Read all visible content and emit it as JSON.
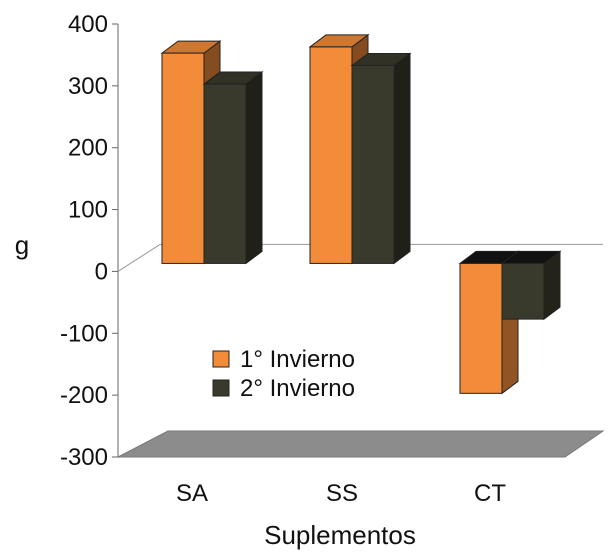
{
  "chart_data": {
    "type": "bar",
    "style": "3d-clustered",
    "categories": [
      "SA",
      "SS",
      "CT"
    ],
    "series": [
      {
        "name": "1° Invierno",
        "values": [
          340,
          350,
          -210
        ],
        "color": "#F28C38"
      },
      {
        "name": "2° Invierno",
        "values": [
          290,
          320,
          -90
        ],
        "color": "#3A3A2C"
      }
    ],
    "xlabel": "Suplementos",
    "ylabel": "g",
    "ylim": [
      -300,
      400
    ],
    "yticks": [
      400,
      300,
      200,
      100,
      0,
      -100,
      -200,
      -300
    ],
    "legend_position": "center-left",
    "floor_color": "#8C8C8C"
  }
}
